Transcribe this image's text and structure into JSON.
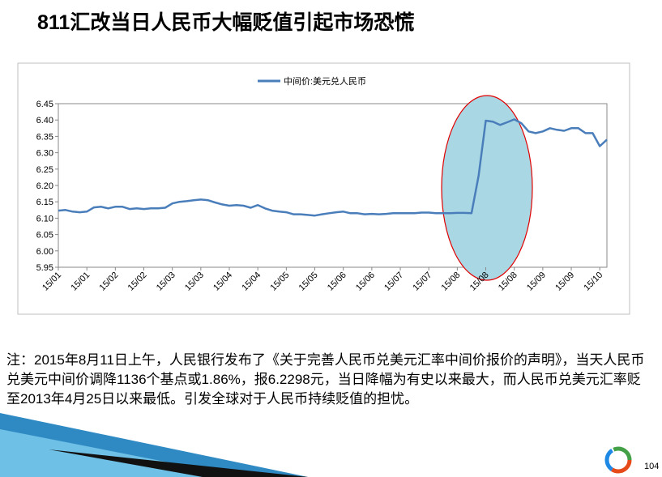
{
  "slide": {
    "title": "811汇改当日人民币大幅贬值引起市场恐慌",
    "note": "注：2015年8月11日上午，人民银行发布了《关于完善人民币兑美元汇率中间价报价的声明》，当天人民币兑美元中间价调降1136个基点或1.86%，报6.2298元，当日降幅为有史以来最大，而人民币兑美元汇率贬至2013年4月25日以来最低。引发全球对于人民币持续贬值的担忧。",
    "page_number": "104"
  },
  "chart_data": {
    "type": "line",
    "legend": "top",
    "categories": [
      "15/01",
      null,
      null,
      null,
      "15/01",
      null,
      null,
      null,
      "15/02",
      null,
      null,
      null,
      "15/02",
      null,
      null,
      null,
      "15/03",
      null,
      null,
      null,
      "15/03",
      null,
      null,
      null,
      "15/04",
      null,
      null,
      null,
      "15/04",
      null,
      null,
      null,
      "15/05",
      null,
      null,
      null,
      "15/05",
      null,
      null,
      null,
      "15/06",
      null,
      null,
      null,
      "15/06",
      null,
      null,
      null,
      "15/07",
      null,
      null,
      null,
      "15/07",
      null,
      null,
      null,
      "15/08",
      null,
      null,
      null,
      "15/08",
      null,
      null,
      null,
      "15/08",
      null,
      null,
      null,
      "15/09",
      null,
      null,
      null,
      "15/09",
      null,
      null,
      null,
      "15/10",
      null
    ],
    "series": [
      {
        "name": "中间价:美元兑人民币",
        "color": "#4a7ebb",
        "values": [
          6.123,
          6.125,
          6.12,
          6.118,
          6.12,
          6.133,
          6.135,
          6.13,
          6.135,
          6.135,
          6.128,
          6.13,
          6.128,
          6.13,
          6.13,
          6.132,
          6.145,
          6.15,
          6.152,
          6.155,
          6.157,
          6.155,
          6.148,
          6.142,
          6.138,
          6.14,
          6.138,
          6.132,
          6.14,
          6.13,
          6.123,
          6.12,
          6.118,
          6.112,
          6.112,
          6.11,
          6.108,
          6.112,
          6.115,
          6.118,
          6.12,
          6.115,
          6.115,
          6.112,
          6.113,
          6.112,
          6.113,
          6.115,
          6.115,
          6.115,
          6.115,
          6.117,
          6.117,
          6.115,
          6.115,
          6.115,
          6.116,
          6.116,
          6.115,
          6.23,
          6.398,
          6.395,
          6.385,
          6.393,
          6.402,
          6.39,
          6.365,
          6.36,
          6.365,
          6.375,
          6.37,
          6.367,
          6.375,
          6.375,
          6.36,
          6.36,
          6.32,
          6.34
        ]
      }
    ],
    "ylim": [
      5.95,
      6.45
    ],
    "yticks": [
      5.95,
      {
        "value": 6,
        "label": "6.00"
      },
      6.05,
      {
        "value": 6.1,
        "label": "6.10"
      },
      6.15,
      {
        "value": 6.2,
        "label": "6.20"
      },
      6.25,
      {
        "value": 6.3,
        "label": "6.30"
      },
      6.35,
      {
        "value": 6.4,
        "label": "6.40"
      },
      6.45
    ],
    "grid": false
  }
}
